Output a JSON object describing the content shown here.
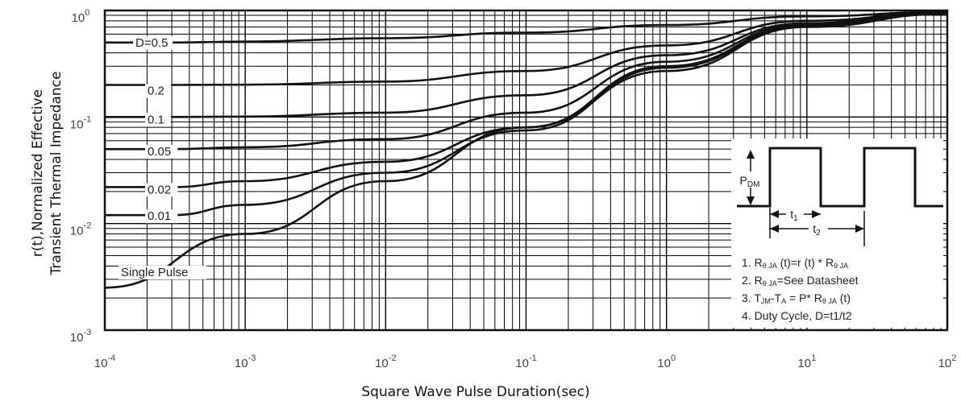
{
  "chart_data": {
    "type": "line",
    "x_scale": "log",
    "y_scale": "log",
    "xlim": [
      0.0001,
      100
    ],
    "ylim": [
      0.001,
      1
    ],
    "grid": true,
    "xlabel": "Square Wave Pulse Duration(sec)",
    "ylabel_lines": [
      "r(t),Normalized Effective",
      "Transient Thermal Impedance"
    ],
    "x_ticks": [
      {
        "value": 0.0001,
        "base": "10",
        "exp": "-4"
      },
      {
        "value": 0.001,
        "base": "10",
        "exp": "-3"
      },
      {
        "value": 0.01,
        "base": "10",
        "exp": "-2"
      },
      {
        "value": 0.1,
        "base": "10",
        "exp": "-1"
      },
      {
        "value": 1,
        "base": "10",
        "exp": "0"
      },
      {
        "value": 10,
        "base": "10",
        "exp": "1"
      },
      {
        "value": 100,
        "base": "10",
        "exp": "2"
      }
    ],
    "y_ticks": [
      {
        "value": 1,
        "base": "10",
        "exp": "0"
      },
      {
        "value": 0.1,
        "base": "10",
        "exp": "-1"
      },
      {
        "value": 0.01,
        "base": "10",
        "exp": "-2"
      },
      {
        "value": 0.001,
        "base": "10",
        "exp": "-3"
      }
    ],
    "series": [
      {
        "name": "D=0.5",
        "x": [
          0.0003,
          0.001,
          0.01,
          0.1,
          1,
          10,
          100
        ],
        "y": [
          0.5,
          0.51,
          0.55,
          0.62,
          0.73,
          0.88,
          0.97
        ]
      },
      {
        "name": "0.2",
        "x": [
          0.0003,
          0.001,
          0.01,
          0.1,
          1,
          10,
          100
        ],
        "y": [
          0.2,
          0.201,
          0.215,
          0.27,
          0.47,
          0.8,
          0.96
        ]
      },
      {
        "name": "0.1",
        "x": [
          0.0003,
          0.001,
          0.01,
          0.1,
          1,
          10,
          100
        ],
        "y": [
          0.1,
          0.101,
          0.11,
          0.16,
          0.38,
          0.76,
          0.95
        ]
      },
      {
        "name": "0.05",
        "x": [
          0.0003,
          0.001,
          0.01,
          0.1,
          1,
          10,
          100
        ],
        "y": [
          0.05,
          0.052,
          0.062,
          0.11,
          0.33,
          0.74,
          0.94
        ]
      },
      {
        "name": "0.02",
        "x": [
          0.0003,
          0.001,
          0.01,
          0.1,
          1,
          10,
          100
        ],
        "y": [
          0.022,
          0.025,
          0.038,
          0.08,
          0.3,
          0.72,
          0.94
        ]
      },
      {
        "name": "0.01",
        "x": [
          0.0003,
          0.001,
          0.01,
          0.1,
          1,
          10,
          100
        ],
        "y": [
          0.012,
          0.015,
          0.03,
          0.075,
          0.29,
          0.71,
          0.93
        ]
      },
      {
        "name": "Single Pulse",
        "x": [
          0.0001,
          0.001,
          0.01,
          0.1,
          1,
          10,
          100
        ],
        "y": [
          0.0025,
          0.008,
          0.025,
          0.08,
          0.27,
          0.7,
          0.93
        ]
      }
    ],
    "inset": {
      "pdm": {
        "base": "P",
        "sub": "DM"
      },
      "t1": {
        "base": "t",
        "sub": "1"
      },
      "t2": {
        "base": "t",
        "sub": "2"
      },
      "notes": [
        {
          "parts": [
            [
              "t",
              "1. R"
            ],
            [
              "s",
              "θ JA"
            ],
            [
              "t",
              " (t)=r (t) * R"
            ],
            [
              "s",
              "θ JA"
            ]
          ]
        },
        {
          "parts": [
            [
              "t",
              "2. R"
            ],
            [
              "s",
              "θ JA"
            ],
            [
              "t",
              "=See Datasheet"
            ]
          ]
        },
        {
          "parts": [
            [
              "t",
              "3. T"
            ],
            [
              "s",
              "JM"
            ],
            [
              "t",
              "-T"
            ],
            [
              "s",
              "A"
            ],
            [
              "t",
              " = P* R"
            ],
            [
              "s",
              "θ JA"
            ],
            [
              "t",
              " (t)"
            ]
          ]
        },
        {
          "parts": [
            [
              "t",
              "4. Duty Cycle, D=t1/t2"
            ]
          ]
        }
      ]
    }
  }
}
